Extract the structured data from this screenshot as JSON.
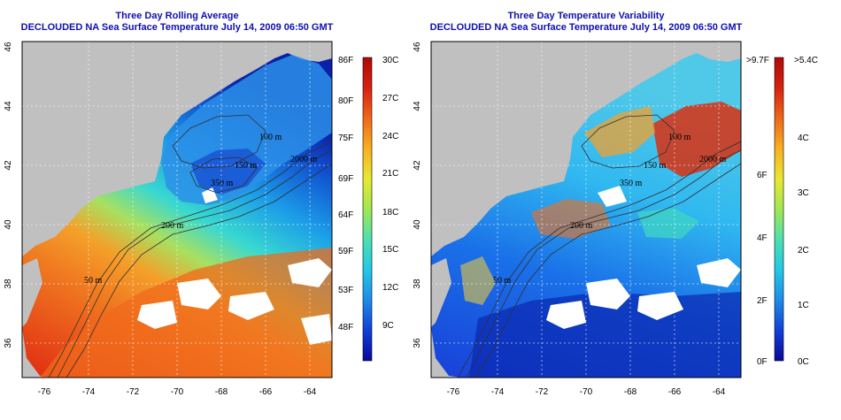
{
  "maps": [
    {
      "title_line1": "Three Day Rolling Average",
      "title_line2": "DECLOUDED NA Sea Surface Temperature July 14, 2009 06:50 GMT",
      "x_ticks": [
        "-76",
        "-74",
        "-72",
        "-70",
        "-68",
        "-66",
        "-64"
      ],
      "y_ticks": [
        "36",
        "38",
        "40",
        "42",
        "44",
        "46"
      ],
      "contour_labels": [
        "100 m",
        "2000 m",
        "150 m",
        "350 m",
        "200 m",
        "50 m"
      ],
      "colorbar": {
        "colors": [
          "#08089a",
          "#1040d8",
          "#1c8ce8",
          "#22c8e8",
          "#4ce0b0",
          "#a0e850",
          "#e8e830",
          "#f8b020",
          "#f06818",
          "#d82010",
          "#b00808"
        ],
        "f_labels": [
          "86F",
          "80F",
          "75F",
          "69F",
          "64F",
          "59F",
          "53F",
          "48F"
        ],
        "c_labels": [
          "30C",
          "27C",
          "24C",
          "21C",
          "18C",
          "15C",
          "12C",
          "9C"
        ]
      }
    },
    {
      "title_line1": "Three Day Temperature Variability",
      "title_line2": "DECLOUDED NA Sea Surface Temperature July 14, 2009 06:50 GMT",
      "x_ticks": [
        "-76",
        "-74",
        "-72",
        "-70",
        "-68",
        "-66",
        "-64"
      ],
      "y_ticks": [
        "36",
        "38",
        "40",
        "42",
        "44",
        "46"
      ],
      "contour_labels": [
        "100 m",
        "2000 m",
        "150 m",
        "350 m",
        "200 m",
        "50 m"
      ],
      "colorbar": {
        "colors": [
          "#08089a",
          "#1040d8",
          "#1c8ce8",
          "#22c8e8",
          "#4ce0b0",
          "#a0e850",
          "#e8e830",
          "#f8b020",
          "#f06818",
          "#d82010",
          "#b00808"
        ],
        "f_labels": [
          ">9.7F",
          "6F",
          "4F",
          "2F",
          "0F"
        ],
        "c_labels": [
          ">5.4C",
          "4C",
          "3C",
          "2C",
          "1C",
          "0C"
        ]
      }
    }
  ]
}
